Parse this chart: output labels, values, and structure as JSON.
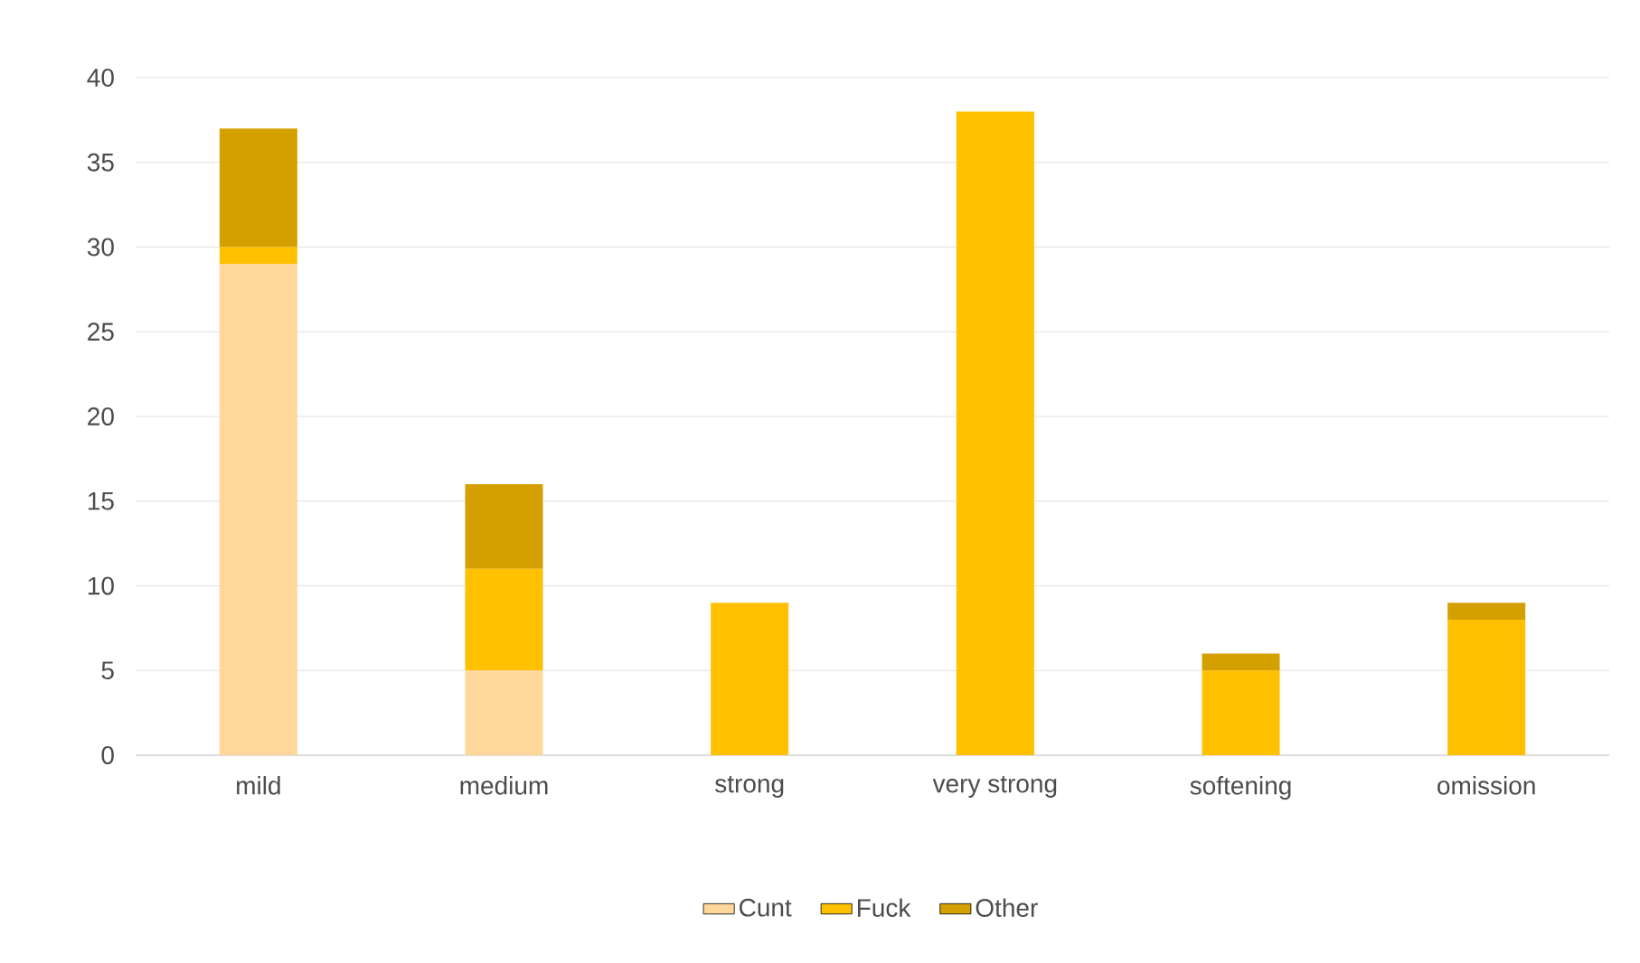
{
  "chart_data": {
    "type": "bar",
    "stacked": true,
    "categories": [
      "mild",
      "medium",
      "strong",
      "very strong",
      "softening",
      "omission"
    ],
    "series": [
      {
        "name": "Cunt",
        "color": "#ffd79b",
        "values": [
          29,
          5,
          0,
          0,
          0,
          0
        ]
      },
      {
        "name": "Fuck",
        "color": "#ffc000",
        "values": [
          1,
          6,
          9,
          38,
          5,
          8
        ]
      },
      {
        "name": "Other",
        "color": "#d4a000",
        "values": [
          7,
          5,
          0,
          0,
          1,
          1
        ]
      }
    ],
    "ylim": [
      0,
      40
    ],
    "yticks": [
      0,
      5,
      10,
      15,
      20,
      25,
      30,
      35,
      40
    ],
    "grid": "y",
    "legend": "bottom"
  }
}
